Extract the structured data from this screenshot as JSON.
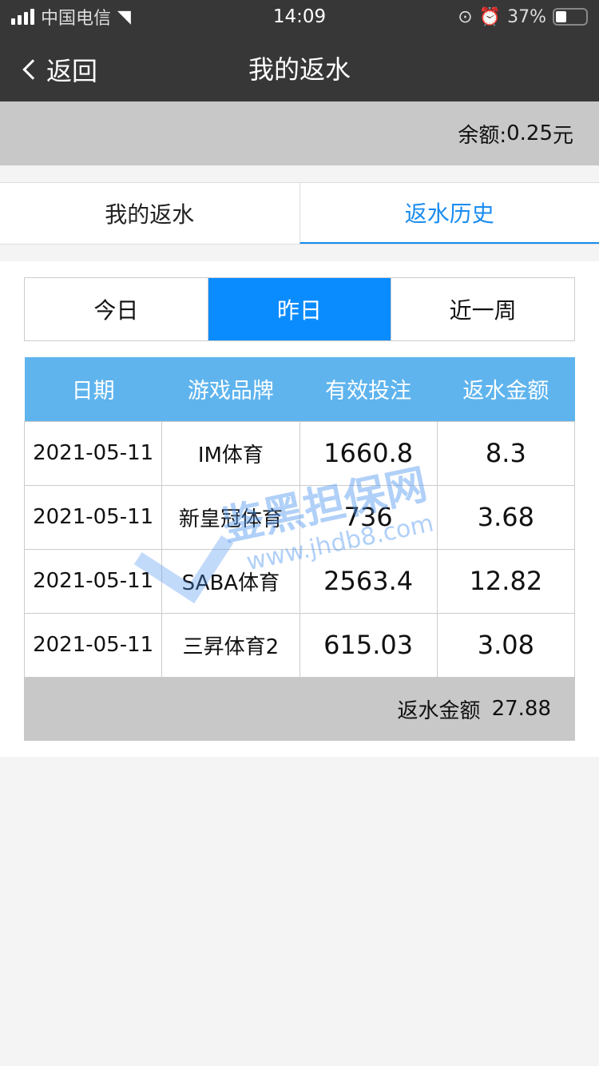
{
  "status_bar": {
    "carrier": "中国电信",
    "time": "14:09",
    "battery": "37%",
    "battery_level": 0.37
  },
  "nav": {
    "back_label": "返回",
    "title": "我的返水"
  },
  "balance": {
    "label": "余额:",
    "value": "0.25",
    "unit": "元"
  },
  "tabs": [
    {
      "label": "我的返水",
      "active": false
    },
    {
      "label": "返水历史",
      "active": true
    }
  ],
  "periods": [
    {
      "label": "今日"
    },
    {
      "label": "昨日",
      "active": true
    },
    {
      "label": "近一周"
    }
  ],
  "table": {
    "headers": [
      "日期",
      "游戏品牌",
      "有效投注",
      "返水金额"
    ],
    "rows": [
      [
        "2021-05-11",
        "IM体育",
        "1660.8",
        "8.3"
      ],
      [
        "2021-05-11",
        "新皇冠体育",
        "736",
        "3.68"
      ],
      [
        "2021-05-11",
        "SABA体育",
        "2563.4",
        "12.82"
      ],
      [
        "2021-05-11",
        "三昇体育2",
        "615.03",
        "3.08"
      ]
    ],
    "total_label": "返水金额",
    "total_value": "27.88"
  },
  "watermark": {
    "text": "鉴黑担保网",
    "url": "www.jhdb8.com"
  },
  "colors": {
    "accent": "#1a8cf0",
    "header_bg": "#373737",
    "table_header": "#5fb4ee",
    "segment_active": "#0a8cff"
  }
}
